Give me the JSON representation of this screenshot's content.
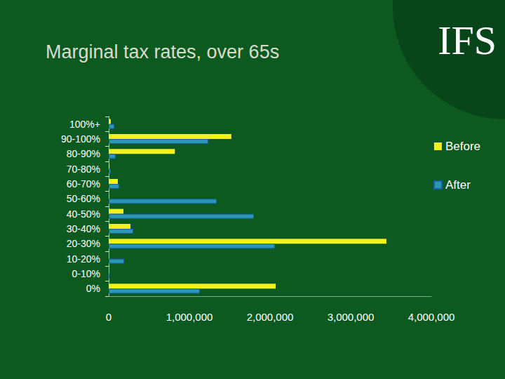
{
  "logo": "IFS",
  "chart_data": {
    "type": "bar",
    "title": "Marginal tax rates, over 65s",
    "orientation": "horizontal",
    "categories": [
      "100%+",
      "90-100%",
      "80-90%",
      "70-80%",
      "60-70%",
      "50-60%",
      "40-50%",
      "30-40%",
      "20-30%",
      "10-20%",
      "0-10%",
      "0%"
    ],
    "series": [
      {
        "name": "Before",
        "color": "#f2f21e",
        "values": [
          26000,
          1520000,
          820000,
          10000,
          113000,
          0,
          183000,
          270000,
          3443000,
          0,
          0,
          2070000
        ]
      },
      {
        "name": "After",
        "color": "#2a97b4",
        "values": [
          70000,
          1235000,
          87000,
          26000,
          130000,
          1340000,
          1800000,
          304000,
          2060000,
          191000,
          0,
          1130000
        ]
      }
    ],
    "xlim": [
      0,
      4000000
    ],
    "xticks": [
      0,
      {
        "value": 1000000,
        "label": "1,000,000"
      },
      {
        "value": 2000000,
        "label": "2,000,000"
      },
      {
        "value": 3000000,
        "label": "3,000,000"
      },
      {
        "value": 4000000,
        "label": "4,000,000"
      }
    ],
    "grid": false,
    "legend": "right",
    "data_labels": false
  }
}
